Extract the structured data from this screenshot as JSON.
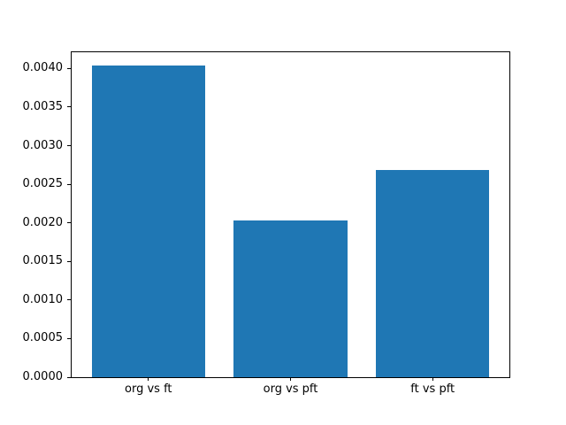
{
  "chart_data": {
    "type": "bar",
    "title": "",
    "xlabel": "",
    "ylabel": "",
    "categories": [
      "org vs ft",
      "org vs pft",
      "ft vs pft"
    ],
    "values": [
      0.00404,
      0.00203,
      0.00268
    ],
    "x": [
      0,
      1,
      2
    ],
    "bar_width": 0.8,
    "bar_color": "#1f77b4",
    "xlim": [
      -0.54,
      2.54
    ],
    "ylim": [
      0,
      0.004211
    ],
    "yticks": {
      "values": [
        0.0,
        0.0005,
        0.001,
        0.0015,
        0.002,
        0.0025,
        0.003,
        0.0035,
        0.004
      ],
      "labels": [
        "0.0000",
        "0.0005",
        "0.0010",
        "0.0015",
        "0.0020",
        "0.0025",
        "0.0030",
        "0.0035",
        "0.0040"
      ]
    },
    "grid": false,
    "legend": null,
    "background_color": "#ffffff",
    "spine_color": "#000000"
  }
}
